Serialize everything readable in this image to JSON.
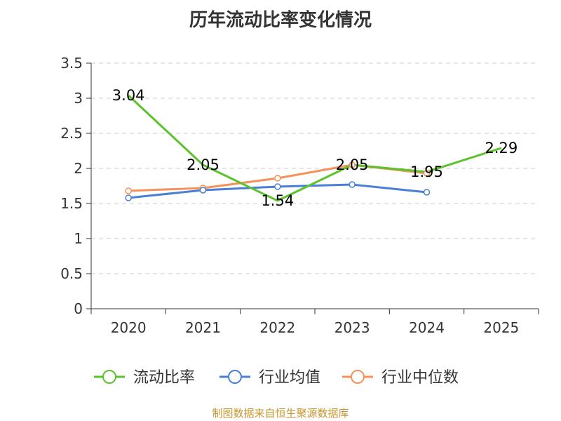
{
  "chart_data": {
    "type": "line",
    "title": "历年流动比率变化情况",
    "categories": [
      "2020",
      "2021",
      "2022",
      "2023",
      "2024",
      "2025"
    ],
    "ylim": [
      0,
      3.5
    ],
    "yticks": [
      "0",
      "0.5",
      "1",
      "1.5",
      "2",
      "2.5",
      "3",
      "3.5"
    ],
    "grid": true,
    "legend_position": "bottom",
    "series": [
      {
        "name": "流动比率",
        "color": "#5cc22b",
        "values": [
          3.04,
          2.05,
          1.54,
          2.05,
          1.95,
          2.29
        ],
        "labels": [
          "3.04",
          "2.05",
          "1.54",
          "2.05",
          "1.95",
          "2.29"
        ],
        "marker": "none"
      },
      {
        "name": "行业均值",
        "color": "#4a7fd6",
        "values": [
          1.58,
          1.69,
          1.74,
          1.77,
          1.66,
          null
        ],
        "marker": "circle"
      },
      {
        "name": "行业中位数",
        "color": "#f5915a",
        "values": [
          1.68,
          1.72,
          1.86,
          2.05,
          1.93,
          null
        ],
        "marker": "circle"
      }
    ]
  },
  "footer": {
    "source": "制图数据来自恒生聚源数据库"
  }
}
